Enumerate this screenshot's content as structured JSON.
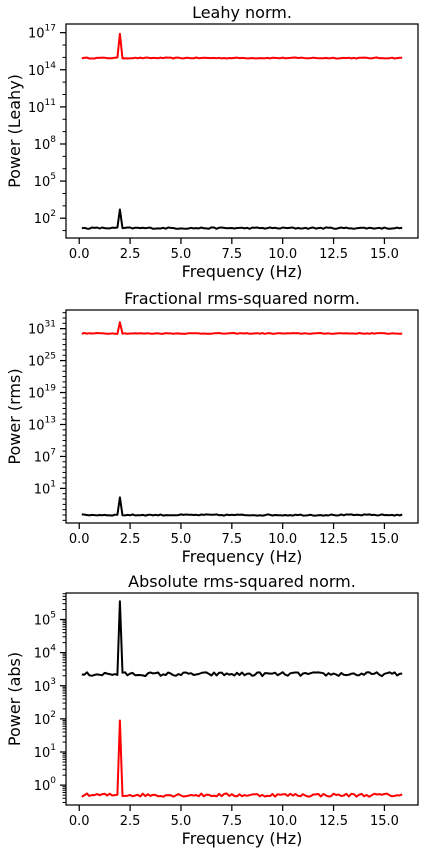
{
  "chart_data": [
    {
      "type": "line",
      "title": "Leahy norm.",
      "xlabel": "Frequency (Hz)",
      "ylabel": "Power (Leahy)",
      "yscale": "log",
      "xlim": [
        -0.65,
        16.65
      ],
      "ylim_log10": [
        0.4,
        17.7
      ],
      "xticks": [
        0.0,
        2.5,
        5.0,
        7.5,
        10.0,
        12.5,
        15.0
      ],
      "xtick_labels": [
        "0.0",
        "2.5",
        "5.0",
        "7.5",
        "10.0",
        "12.5",
        "15.0"
      ],
      "yticks_log10": [
        2,
        5,
        8,
        11,
        14,
        17
      ],
      "ytick_labels": [
        {
          "base": "10",
          "exp": "2"
        },
        {
          "base": "10",
          "exp": "5"
        },
        {
          "base": "10",
          "exp": "8"
        },
        {
          "base": "10",
          "exp": "11"
        },
        {
          "base": "10",
          "exp": "14"
        },
        {
          "base": "10",
          "exp": "17"
        }
      ],
      "grid": false,
      "series": [
        {
          "color": "#ff0000",
          "baseline_log10": 14.95,
          "noise": 0.04,
          "peak_x": 2.0,
          "peak_log10": 16.9
        },
        {
          "color": "#000000",
          "baseline_log10": 1.2,
          "noise": 0.06,
          "peak_x": 2.0,
          "peak_log10": 2.7
        }
      ]
    },
    {
      "type": "line",
      "title": "Fractional rms-squared norm.",
      "xlabel": "Frequency (Hz)",
      "ylabel": "Power (rms)",
      "yscale": "log",
      "xlim": [
        -0.65,
        16.65
      ],
      "ylim_log10": [
        -5.5,
        34.5
      ],
      "xticks": [
        0.0,
        2.5,
        5.0,
        7.5,
        10.0,
        12.5,
        15.0
      ],
      "xtick_labels": [
        "0.0",
        "2.5",
        "5.0",
        "7.5",
        "10.0",
        "12.5",
        "15.0"
      ],
      "yticks_log10": [
        1,
        7,
        13,
        19,
        25,
        31
      ],
      "ytick_labels": [
        {
          "base": "10",
          "exp": "1"
        },
        {
          "base": "10",
          "exp": "7"
        },
        {
          "base": "10",
          "exp": "13"
        },
        {
          "base": "10",
          "exp": "19"
        },
        {
          "base": "10",
          "exp": "25"
        },
        {
          "base": "10",
          "exp": "31"
        }
      ],
      "grid": false,
      "series": [
        {
          "color": "#ff0000",
          "baseline_log10": 30.1,
          "noise": 0.08,
          "peak_x": 2.0,
          "peak_log10": 32.2
        },
        {
          "color": "#000000",
          "baseline_log10": -4.0,
          "noise": 0.12,
          "peak_x": 2.0,
          "peak_log10": -0.7
        }
      ]
    },
    {
      "type": "line",
      "title": "Absolute rms-squared norm.",
      "xlabel": "Frequency (Hz)",
      "ylabel": "Power (abs)",
      "yscale": "log",
      "xlim": [
        -0.65,
        16.65
      ],
      "ylim_log10": [
        -0.6,
        5.8
      ],
      "xticks": [
        0.0,
        2.5,
        5.0,
        7.5,
        10.0,
        12.5,
        15.0
      ],
      "xtick_labels": [
        "0.0",
        "2.5",
        "5.0",
        "7.5",
        "10.0",
        "12.5",
        "15.0"
      ],
      "yticks_log10": [
        0,
        1,
        2,
        3,
        4,
        5
      ],
      "ytick_labels": [
        {
          "base": "10",
          "exp": "0"
        },
        {
          "base": "10",
          "exp": "1"
        },
        {
          "base": "10",
          "exp": "2"
        },
        {
          "base": "10",
          "exp": "3"
        },
        {
          "base": "10",
          "exp": "4"
        },
        {
          "base": "10",
          "exp": "5"
        }
      ],
      "grid": false,
      "series": [
        {
          "color": "#000000",
          "baseline_log10": 3.35,
          "noise": 0.06,
          "peak_x": 2.0,
          "peak_log10": 5.55
        },
        {
          "color": "#ff0000",
          "baseline_log10": -0.3,
          "noise": 0.05,
          "peak_x": 2.0,
          "peak_log10": 1.95
        }
      ]
    }
  ]
}
